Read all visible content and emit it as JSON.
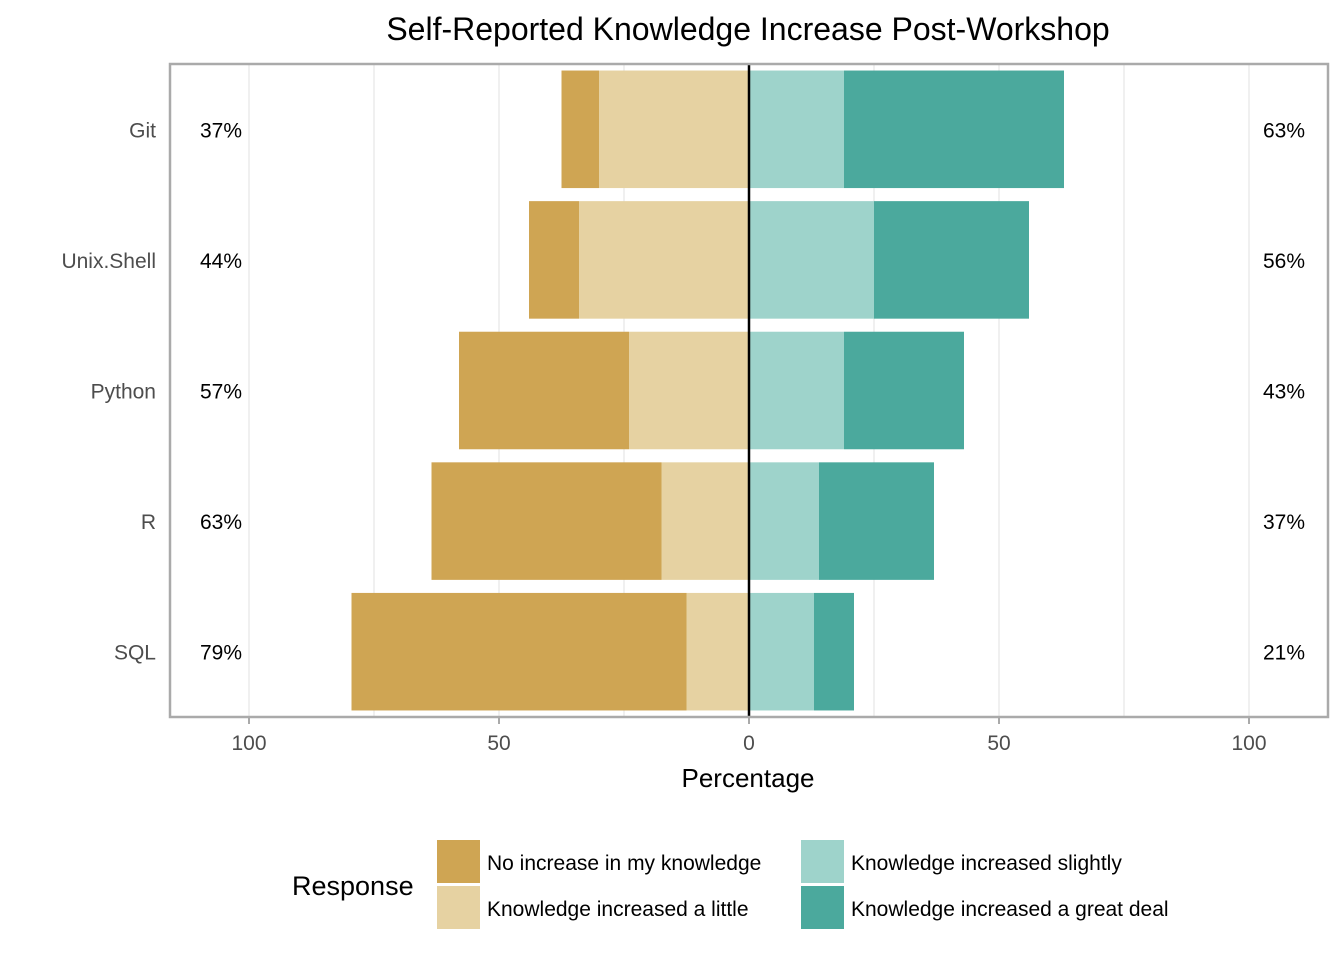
{
  "chart_data": {
    "type": "bar",
    "orientation": "horizontal",
    "layout": "diverging-stacked",
    "title": "Self-Reported Knowledge Increase Post-Workshop",
    "xlabel": "Percentage",
    "ylabel": "",
    "xlim": [
      -115,
      115
    ],
    "x_ticks": [
      -100,
      -50,
      0,
      50,
      100
    ],
    "x_tick_labels": [
      "100",
      "50",
      "0",
      "50",
      "100"
    ],
    "grid": true,
    "categories": [
      "Git",
      "Unix.Shell",
      "Python",
      "R",
      "SQL"
    ],
    "series": [
      {
        "name": "No increase in my knowledge",
        "side": "negative",
        "color": "#CFA553",
        "values": [
          7.5,
          10,
          34,
          46,
          67
        ]
      },
      {
        "name": "Knowledge increased a little",
        "side": "negative",
        "color": "#E6D2A2",
        "values": [
          30,
          34,
          24,
          17.5,
          12.5
        ]
      },
      {
        "name": "Knowledge increased slightly",
        "side": "positive",
        "color": "#9ED3CB",
        "values": [
          19,
          25,
          19,
          14,
          13
        ]
      },
      {
        "name": "Knowledge increased a great deal",
        "side": "positive",
        "color": "#4BA99D",
        "values": [
          44,
          31,
          24,
          23,
          8
        ]
      }
    ],
    "left_labels": [
      "37%",
      "44%",
      "57%",
      "63%",
      "79%"
    ],
    "right_labels": [
      "63%",
      "56%",
      "43%",
      "37%",
      "21%"
    ],
    "legend": {
      "title": "Response",
      "position": "bottom",
      "columns": [
        [
          "No increase in my knowledge",
          "Knowledge increased a little"
        ],
        [
          "Knowledge increased slightly",
          "Knowledge increased a great deal"
        ]
      ]
    },
    "colors": {
      "zero_line": "#000000",
      "panel_border": "#AAAAAA",
      "grid": "#EBEBEB",
      "axis_text": "#4D4D4D"
    }
  }
}
